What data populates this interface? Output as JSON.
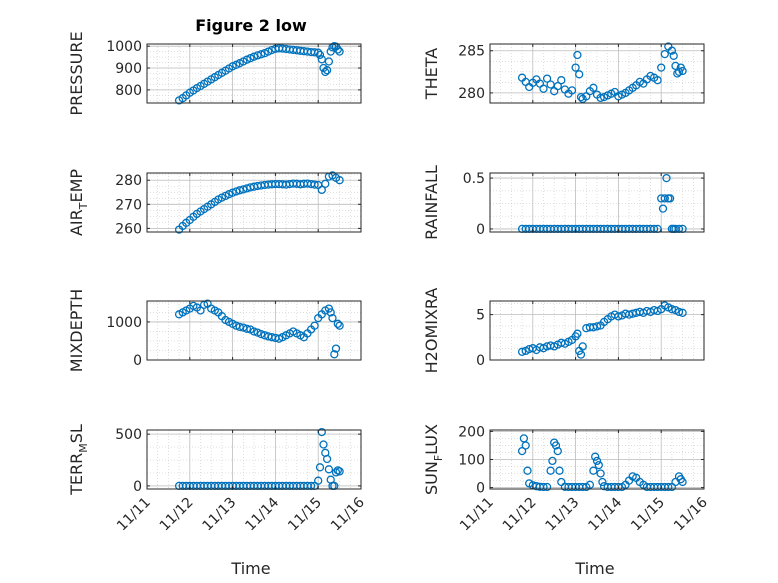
{
  "figure": {
    "title": "Figure 2 low",
    "xlabel": "Time",
    "marker_color": "#0072BD",
    "axis_color": "#262626",
    "grid_color": "#cccccc"
  },
  "x_ticks": [
    "11/11",
    "11/12",
    "11/13",
    "11/14",
    "11/15",
    "11/16"
  ],
  "chart_data": [
    {
      "type": "scatter",
      "ylabel": "PRESSURE",
      "ylim": [
        740,
        1010
      ],
      "yticks": [
        800,
        900,
        1000
      ],
      "grid": true,
      "xlim": [
        "11/11",
        "11/16"
      ],
      "x": [
        "11/11 18:00",
        "11/11 20:00",
        "11/11 22:00",
        "11/12 00:00",
        "11/12 02:00",
        "11/12 04:00",
        "11/12 06:00",
        "11/12 08:00",
        "11/12 10:00",
        "11/12 12:00",
        "11/12 14:00",
        "11/12 16:00",
        "11/12 18:00",
        "11/12 20:00",
        "11/12 22:00",
        "11/13 00:00",
        "11/13 02:00",
        "11/13 04:00",
        "11/13 06:00",
        "11/13 08:00",
        "11/13 10:00",
        "11/13 12:00",
        "11/13 14:00",
        "11/13 16:00",
        "11/13 18:00",
        "11/13 20:00",
        "11/13 22:00",
        "11/14 00:00",
        "11/14 02:00",
        "11/14 04:00",
        "11/14 06:00",
        "11/14 08:00",
        "11/14 10:00",
        "11/14 12:00",
        "11/14 14:00",
        "11/14 16:00",
        "11/14 18:00",
        "11/14 20:00",
        "11/14 22:00",
        "11/15 00:00",
        "11/15 01:00",
        "11/15 02:00",
        "11/15 03:00",
        "11/15 04:00",
        "11/15 05:00",
        "11/15 06:00",
        "11/15 07:00",
        "11/15 08:00",
        "11/15 09:00",
        "11/15 10:00",
        "11/15 11:00",
        "11/15 12:00"
      ],
      "y": [
        752,
        762,
        775,
        787,
        797,
        808,
        818,
        828,
        838,
        848,
        858,
        868,
        878,
        888,
        898,
        908,
        915,
        922,
        930,
        938,
        945,
        952,
        958,
        963,
        968,
        975,
        982,
        988,
        990,
        989,
        987,
        985,
        983,
        981,
        979,
        977,
        975,
        973,
        972,
        970,
        960,
        940,
        900,
        882,
        890,
        930,
        975,
        995,
        1000,
        998,
        985,
        975
      ]
    },
    {
      "type": "scatter",
      "ylabel": "THETA",
      "ylim": [
        278.8,
        285.8
      ],
      "yticks": [
        280,
        285
      ],
      "grid": true,
      "xlim": [
        "11/11",
        "11/16"
      ],
      "x": [
        "11/11 18:00",
        "11/11 20:00",
        "11/11 22:00",
        "11/12 00:00",
        "11/12 02:00",
        "11/12 04:00",
        "11/12 06:00",
        "11/12 08:00",
        "11/12 10:00",
        "11/12 12:00",
        "11/12 14:00",
        "11/12 16:00",
        "11/12 18:00",
        "11/12 20:00",
        "11/12 22:00",
        "11/13 00:00",
        "11/13 01:00",
        "11/13 02:00",
        "11/13 03:00",
        "11/13 04:00",
        "11/13 06:00",
        "11/13 08:00",
        "11/13 10:00",
        "11/13 12:00",
        "11/13 14:00",
        "11/13 16:00",
        "11/13 18:00",
        "11/13 20:00",
        "11/13 22:00",
        "11/14 00:00",
        "11/14 02:00",
        "11/14 04:00",
        "11/14 06:00",
        "11/14 08:00",
        "11/14 10:00",
        "11/14 12:00",
        "11/14 14:00",
        "11/14 16:00",
        "11/14 18:00",
        "11/14 20:00",
        "11/14 22:00",
        "11/15 00:00",
        "11/15 02:00",
        "11/15 04:00",
        "11/15 06:00",
        "11/15 07:00",
        "11/15 08:00",
        "11/15 09:00",
        "11/15 10:00",
        "11/15 11:00",
        "11/15 12:00"
      ],
      "y": [
        281.8,
        281.3,
        280.7,
        281.2,
        281.6,
        281.1,
        280.5,
        281.7,
        281.0,
        280.2,
        280.8,
        281.5,
        280.4,
        279.9,
        280.3,
        283.0,
        284.5,
        282.2,
        279.5,
        279.3,
        279.6,
        280.2,
        280.6,
        279.8,
        279.4,
        279.5,
        279.7,
        279.9,
        280.1,
        279.6,
        279.8,
        280.0,
        280.3,
        280.6,
        280.9,
        281.3,
        281.1,
        281.6,
        282.0,
        281.8,
        281.5,
        283.0,
        284.6,
        285.5,
        285.0,
        284.4,
        283.2,
        282.3,
        282.5,
        283.0,
        282.6
      ]
    },
    {
      "type": "scatter",
      "ylabel": "AIR_TEMP",
      "ylim": [
        258.5,
        283
      ],
      "yticks": [
        260,
        270,
        280
      ],
      "grid": true,
      "xlim": [
        "11/11",
        "11/16"
      ],
      "x": [
        "11/11 18:00",
        "11/11 20:00",
        "11/11 22:00",
        "11/12 00:00",
        "11/12 02:00",
        "11/12 04:00",
        "11/12 06:00",
        "11/12 08:00",
        "11/12 10:00",
        "11/12 12:00",
        "11/12 14:00",
        "11/12 16:00",
        "11/12 18:00",
        "11/12 20:00",
        "11/12 22:00",
        "11/13 00:00",
        "11/13 02:00",
        "11/13 04:00",
        "11/13 06:00",
        "11/13 08:00",
        "11/13 10:00",
        "11/13 12:00",
        "11/13 14:00",
        "11/13 16:00",
        "11/13 18:00",
        "11/13 20:00",
        "11/13 22:00",
        "11/14 00:00",
        "11/14 02:00",
        "11/14 04:00",
        "11/14 06:00",
        "11/14 08:00",
        "11/14 10:00",
        "11/14 12:00",
        "11/14 14:00",
        "11/14 16:00",
        "11/14 18:00",
        "11/14 20:00",
        "11/14 22:00",
        "11/15 00:00",
        "11/15 02:00",
        "11/15 04:00",
        "11/15 06:00",
        "11/15 08:00",
        "11/15 10:00",
        "11/15 12:00"
      ],
      "y": [
        259.5,
        261,
        262.3,
        263.5,
        264.8,
        266,
        267,
        268,
        269,
        270,
        271,
        272,
        272.8,
        273.5,
        274.2,
        274.8,
        275.3,
        275.8,
        276.2,
        276.6,
        277,
        277.3,
        277.6,
        277.8,
        278,
        278.2,
        278.3,
        278.4,
        278.4,
        278.3,
        278.2,
        278.4,
        278.6,
        278.5,
        278.3,
        278.5,
        278.6,
        278.4,
        278.2,
        278,
        276,
        278.5,
        281.5,
        282,
        281,
        280
      ]
    },
    {
      "type": "scatter",
      "ylabel": "RAINFALL",
      "ylim": [
        -0.03,
        0.55
      ],
      "yticks": [
        0,
        0.5
      ],
      "grid": true,
      "xlim": [
        "11/11",
        "11/16"
      ],
      "x": [
        "11/11 18:00",
        "11/11 20:00",
        "11/11 22:00",
        "11/12 00:00",
        "11/12 02:00",
        "11/12 04:00",
        "11/12 06:00",
        "11/12 08:00",
        "11/12 10:00",
        "11/12 12:00",
        "11/12 14:00",
        "11/12 16:00",
        "11/12 18:00",
        "11/12 20:00",
        "11/12 22:00",
        "11/13 00:00",
        "11/13 02:00",
        "11/13 04:00",
        "11/13 06:00",
        "11/13 08:00",
        "11/13 10:00",
        "11/13 12:00",
        "11/13 14:00",
        "11/13 16:00",
        "11/13 18:00",
        "11/13 20:00",
        "11/13 22:00",
        "11/14 00:00",
        "11/14 02:00",
        "11/14 04:00",
        "11/14 06:00",
        "11/14 08:00",
        "11/14 10:00",
        "11/14 12:00",
        "11/14 14:00",
        "11/14 16:00",
        "11/14 18:00",
        "11/14 20:00",
        "11/14 22:00",
        "11/15 00:00",
        "11/15 01:00",
        "11/15 02:00",
        "11/15 03:00",
        "11/15 04:00",
        "11/15 05:00",
        "11/15 06:00",
        "11/15 07:00",
        "11/15 08:00",
        "11/15 10:00",
        "11/15 12:00"
      ],
      "y": [
        0,
        0,
        0,
        0,
        0,
        0,
        0,
        0,
        0,
        0,
        0,
        0,
        0,
        0,
        0,
        0,
        0,
        0,
        0,
        0,
        0,
        0,
        0,
        0,
        0,
        0,
        0,
        0,
        0,
        0,
        0,
        0,
        0,
        0,
        0,
        0,
        0,
        0,
        0,
        0.3,
        0.2,
        0.3,
        0.5,
        0.3,
        0.3,
        0,
        0,
        0,
        0,
        0
      ]
    },
    {
      "type": "scatter",
      "ylabel": "MIXDEPTH",
      "ylim": [
        0,
        1550
      ],
      "yticks": [
        0,
        1000
      ],
      "grid": true,
      "xlim": [
        "11/11",
        "11/16"
      ],
      "x": [
        "11/11 18:00",
        "11/11 20:00",
        "11/11 22:00",
        "11/12 00:00",
        "11/12 02:00",
        "11/12 04:00",
        "11/12 06:00",
        "11/12 08:00",
        "11/12 10:00",
        "11/12 12:00",
        "11/12 14:00",
        "11/12 16:00",
        "11/12 18:00",
        "11/12 20:00",
        "11/12 22:00",
        "11/13 00:00",
        "11/13 02:00",
        "11/13 04:00",
        "11/13 06:00",
        "11/13 08:00",
        "11/13 10:00",
        "11/13 12:00",
        "11/13 14:00",
        "11/13 16:00",
        "11/13 18:00",
        "11/13 20:00",
        "11/13 22:00",
        "11/14 00:00",
        "11/14 02:00",
        "11/14 04:00",
        "11/14 06:00",
        "11/14 08:00",
        "11/14 10:00",
        "11/14 12:00",
        "11/14 14:00",
        "11/14 16:00",
        "11/14 18:00",
        "11/14 20:00",
        "11/14 22:00",
        "11/15 00:00",
        "11/15 02:00",
        "11/15 04:00",
        "11/15 06:00",
        "11/15 07:00",
        "11/15 08:00",
        "11/15 09:00",
        "11/15 10:00",
        "11/15 11:00",
        "11/15 12:00"
      ],
      "y": [
        1200,
        1250,
        1300,
        1350,
        1420,
        1380,
        1300,
        1450,
        1480,
        1350,
        1300,
        1250,
        1150,
        1050,
        1000,
        950,
        900,
        870,
        850,
        820,
        800,
        750,
        720,
        680,
        650,
        620,
        600,
        580,
        560,
        600,
        650,
        700,
        750,
        700,
        650,
        600,
        700,
        800,
        900,
        1100,
        1200,
        1300,
        1350,
        1250,
        1100,
        150,
        300,
        950,
        900
      ]
    },
    {
      "type": "scatter",
      "ylabel": "H2OMIXRA",
      "ylim": [
        0,
        6.5
      ],
      "yticks": [
        0,
        5
      ],
      "grid": true,
      "xlim": [
        "11/11",
        "11/16"
      ],
      "x": [
        "11/11 18:00",
        "11/11 20:00",
        "11/11 22:00",
        "11/12 00:00",
        "11/12 02:00",
        "11/12 04:00",
        "11/12 06:00",
        "11/12 08:00",
        "11/12 10:00",
        "11/12 12:00",
        "11/12 14:00",
        "11/12 16:00",
        "11/12 18:00",
        "11/12 20:00",
        "11/12 22:00",
        "11/13 00:00",
        "11/13 01:00",
        "11/13 02:00",
        "11/13 03:00",
        "11/13 04:00",
        "11/13 06:00",
        "11/13 08:00",
        "11/13 10:00",
        "11/13 12:00",
        "11/13 14:00",
        "11/13 16:00",
        "11/13 18:00",
        "11/13 20:00",
        "11/13 22:00",
        "11/14 00:00",
        "11/14 02:00",
        "11/14 04:00",
        "11/14 06:00",
        "11/14 08:00",
        "11/14 10:00",
        "11/14 12:00",
        "11/14 14:00",
        "11/14 16:00",
        "11/14 18:00",
        "11/14 20:00",
        "11/14 22:00",
        "11/15 00:00",
        "11/15 02:00",
        "11/15 04:00",
        "11/15 06:00",
        "11/15 08:00",
        "11/15 10:00",
        "11/15 12:00"
      ],
      "y": [
        0.9,
        1.0,
        1.2,
        1.3,
        1.1,
        1.4,
        1.3,
        1.5,
        1.6,
        1.5,
        1.7,
        1.9,
        1.8,
        2.0,
        2.2,
        2.6,
        2.9,
        1.0,
        0.6,
        1.5,
        3.5,
        3.6,
        3.6,
        3.7,
        3.8,
        4.2,
        4.5,
        4.8,
        5.0,
        4.8,
        4.9,
        5.1,
        5.0,
        5.1,
        5.2,
        5.3,
        5.2,
        5.4,
        5.3,
        5.5,
        5.4,
        5.6,
        6.0,
        5.8,
        5.6,
        5.5,
        5.3,
        5.2
      ]
    },
    {
      "type": "scatter",
      "ylabel": "TERR_MSL",
      "ylim": [
        -30,
        540
      ],
      "yticks": [
        0,
        500
      ],
      "grid": true,
      "xlim": [
        "11/11",
        "11/16"
      ],
      "x": [
        "11/11 18:00",
        "11/11 20:00",
        "11/11 22:00",
        "11/12 00:00",
        "11/12 02:00",
        "11/12 04:00",
        "11/12 06:00",
        "11/12 08:00",
        "11/12 10:00",
        "11/12 12:00",
        "11/12 14:00",
        "11/12 16:00",
        "11/12 18:00",
        "11/12 20:00",
        "11/12 22:00",
        "11/13 00:00",
        "11/13 02:00",
        "11/13 04:00",
        "11/13 06:00",
        "11/13 08:00",
        "11/13 10:00",
        "11/13 12:00",
        "11/13 14:00",
        "11/13 16:00",
        "11/13 18:00",
        "11/13 20:00",
        "11/13 22:00",
        "11/14 00:00",
        "11/14 02:00",
        "11/14 04:00",
        "11/14 06:00",
        "11/14 08:00",
        "11/14 10:00",
        "11/14 12:00",
        "11/14 14:00",
        "11/14 16:00",
        "11/14 18:00",
        "11/14 20:00",
        "11/14 22:00",
        "11/15 00:00",
        "11/15 01:00",
        "11/15 02:00",
        "11/15 03:00",
        "11/15 04:00",
        "11/15 05:00",
        "11/15 06:00",
        "11/15 07:00",
        "11/15 08:00",
        "11/15 09:00",
        "11/15 10:00",
        "11/15 11:00",
        "11/15 12:00"
      ],
      "y": [
        0,
        0,
        0,
        0,
        0,
        0,
        0,
        0,
        0,
        0,
        0,
        0,
        0,
        0,
        0,
        0,
        0,
        0,
        0,
        0,
        0,
        0,
        0,
        0,
        0,
        0,
        0,
        0,
        0,
        0,
        0,
        0,
        0,
        0,
        0,
        0,
        0,
        0,
        0,
        50,
        180,
        520,
        400,
        320,
        260,
        160,
        60,
        0,
        0,
        130,
        150,
        140
      ]
    },
    {
      "type": "scatter",
      "ylabel": "SUN_FLUX",
      "ylim": [
        -5,
        205
      ],
      "yticks": [
        0,
        100,
        200
      ],
      "grid": true,
      "xlim": [
        "11/11",
        "11/16"
      ],
      "x": [
        "11/11 18:00",
        "11/11 19:00",
        "11/11 20:00",
        "11/11 21:00",
        "11/11 22:00",
        "11/12 00:00",
        "11/12 02:00",
        "11/12 04:00",
        "11/12 06:00",
        "11/12 08:00",
        "11/12 10:00",
        "11/12 11:00",
        "11/12 12:00",
        "11/12 13:00",
        "11/12 14:00",
        "11/12 15:00",
        "11/12 16:00",
        "11/12 18:00",
        "11/12 20:00",
        "11/12 22:00",
        "11/13 00:00",
        "11/13 02:00",
        "11/13 04:00",
        "11/13 06:00",
        "11/13 08:00",
        "11/13 10:00",
        "11/13 11:00",
        "11/13 12:00",
        "11/13 13:00",
        "11/13 14:00",
        "11/13 15:00",
        "11/13 16:00",
        "11/13 18:00",
        "11/13 20:00",
        "11/13 22:00",
        "11/14 00:00",
        "11/14 02:00",
        "11/14 04:00",
        "11/14 06:00",
        "11/14 08:00",
        "11/14 10:00",
        "11/14 12:00",
        "11/14 14:00",
        "11/14 16:00",
        "11/14 18:00",
        "11/14 20:00",
        "11/14 22:00",
        "11/15 00:00",
        "11/15 02:00",
        "11/15 04:00",
        "11/15 06:00",
        "11/15 08:00",
        "11/15 10:00",
        "11/15 11:00",
        "11/15 12:00"
      ],
      "y": [
        130,
        175,
        150,
        60,
        15,
        8,
        5,
        3,
        2,
        2,
        60,
        95,
        160,
        150,
        130,
        60,
        20,
        3,
        2,
        2,
        2,
        2,
        2,
        2,
        10,
        60,
        110,
        95,
        80,
        50,
        20,
        5,
        2,
        2,
        2,
        2,
        2,
        10,
        25,
        40,
        35,
        20,
        10,
        2,
        2,
        2,
        2,
        2,
        2,
        2,
        2,
        20,
        40,
        30,
        20
      ]
    }
  ]
}
